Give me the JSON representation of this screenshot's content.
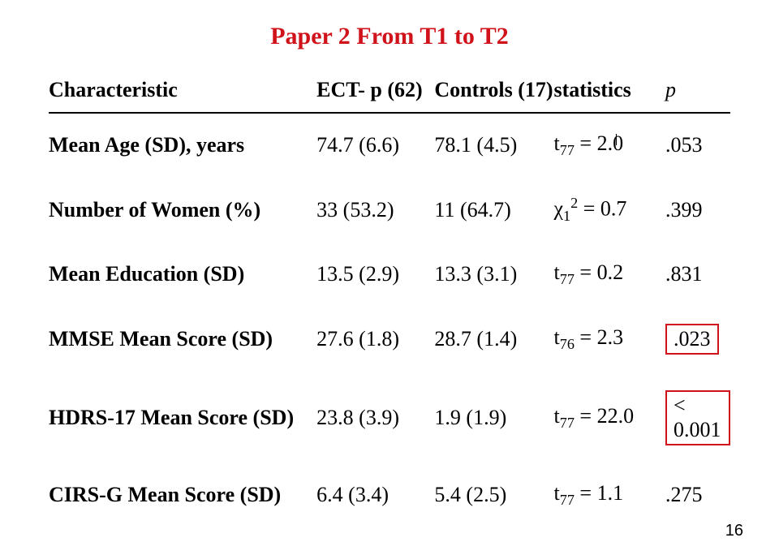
{
  "title": "Paper 2 From T1 to T2",
  "headers": {
    "characteristic": "Characteristic",
    "group_a": "ECT- p (62)",
    "group_b": "Controls (17)",
    "statistics": "statistics",
    "p": "p"
  },
  "rows": [
    {
      "label": "Mean Age (SD), years",
      "a": "74.7 (6.6)",
      "b": "78.1 (4.5)",
      "stat_prefix": "t",
      "stat_sub": "77",
      "stat_sup": "",
      "stat_rhs": " = 2.0",
      "p": ".053",
      "p_boxed": false
    },
    {
      "label": "Number of Women (%)",
      "a": "33 (53.2)",
      "b": "11 (64.7)",
      "stat_prefix": "χ",
      "stat_sub": "1",
      "stat_sup": "2",
      "stat_rhs": " = 0.7",
      "p": ".399",
      "p_boxed": false
    },
    {
      "label": "Mean Education (SD)",
      "a": "13.5 (2.9)",
      "b": "13.3 (3.1)",
      "stat_prefix": "t",
      "stat_sub": "77",
      "stat_sup": "",
      "stat_rhs": " = 0.2",
      "p": ".831",
      "p_boxed": false
    },
    {
      "label": "MMSE Mean Score (SD)",
      "a": "27.6 (1.8)",
      "b": "28.7 (1.4)",
      "stat_prefix": "t",
      "stat_sub": "76",
      "stat_sup": "",
      "stat_rhs": " = 2.3",
      "p": ".023",
      "p_boxed": true
    },
    {
      "label": "HDRS-17 Mean Score (SD)",
      "a": "23.8 (3.9)",
      "b": "1.9 (1.9)",
      "stat_prefix": "t",
      "stat_sub": "77",
      "stat_sup": "",
      "stat_rhs": " = 22.0",
      "p": "< 0.001",
      "p_boxed": true
    },
    {
      "label": "CIRS-G Mean Score (SD)",
      "a": "6.4 (3.4)",
      "b": "5.4 (2.5)",
      "stat_prefix": "t",
      "stat_sub": "77",
      "stat_sup": "",
      "stat_rhs": " = 1.1",
      "p": ".275",
      "p_boxed": false
    }
  ],
  "page_number": "16",
  "colors": {
    "accent_red": "#d0131a",
    "text": "#000000",
    "background": "#ffffff"
  }
}
